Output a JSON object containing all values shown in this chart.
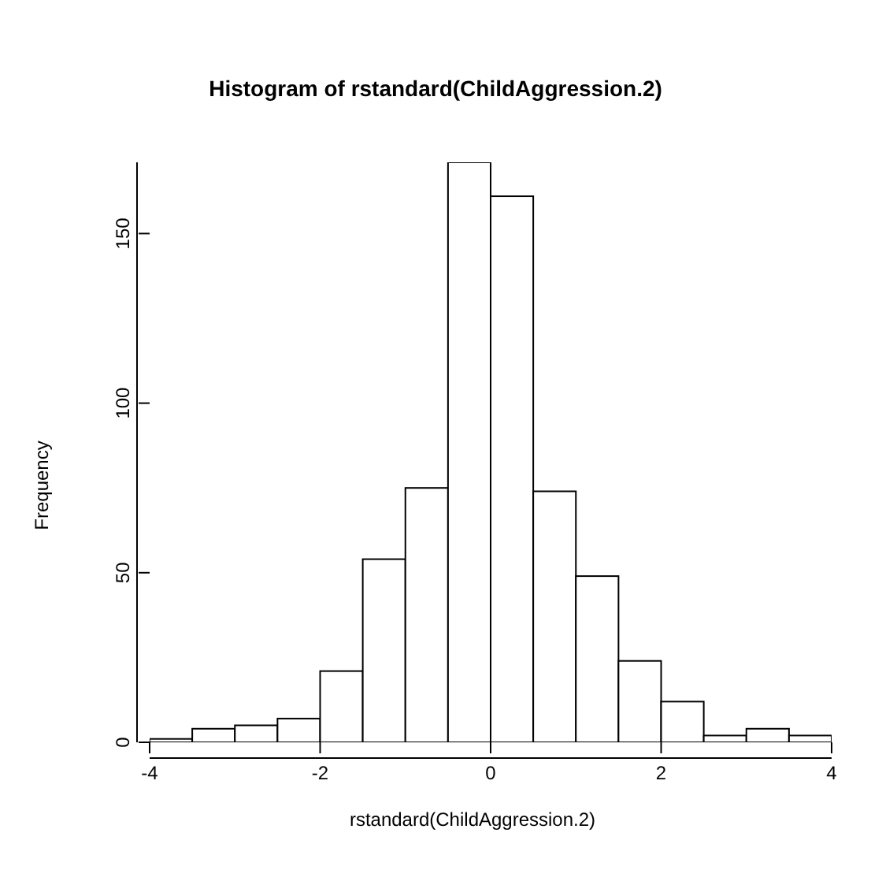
{
  "chart_data": {
    "type": "histogram",
    "title": "Histogram of rstandard(ChildAggression.2)",
    "xlabel": "rstandard(ChildAggression.2)",
    "ylabel": "Frequency",
    "bins": [
      -4,
      -3.5,
      -3,
      -2.5,
      -2,
      -1.5,
      -1,
      -0.5,
      0,
      0.5,
      1,
      1.5,
      2,
      2.5,
      3,
      3.5,
      4
    ],
    "values": [
      1,
      4,
      5,
      7,
      21,
      54,
      75,
      171,
      161,
      74,
      49,
      24,
      12,
      2,
      4,
      2
    ],
    "color": "#ffffff",
    "xlim": [
      -4,
      4
    ],
    "xticks": [
      -4,
      -2,
      0,
      2,
      4
    ],
    "ylim": [
      0,
      171
    ],
    "yticks": [
      0,
      50,
      100,
      150
    ]
  }
}
